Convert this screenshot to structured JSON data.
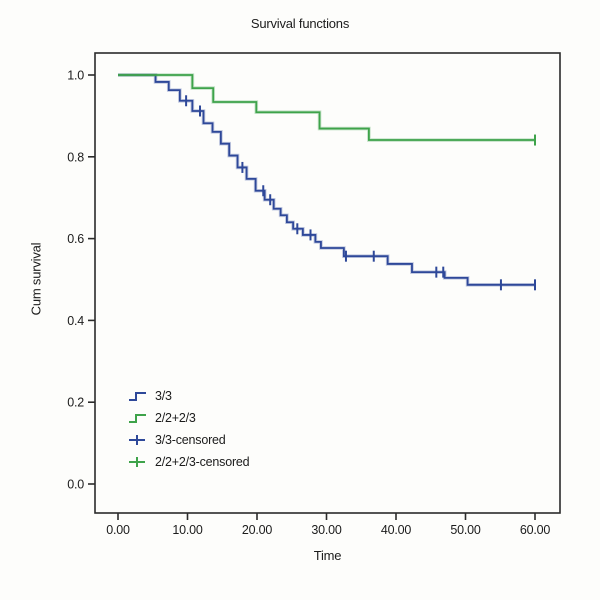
{
  "chart_data": {
    "type": "line",
    "subtype": "kaplan-meier-step-survival",
    "title": "Survival functions",
    "xlabel": "Time",
    "ylabel": "Cum survival",
    "xlim": [
      0,
      60
    ],
    "ylim": [
      0.0,
      1.0
    ],
    "grid": false,
    "legend_position": "lower-left-inside",
    "x_ticks": [
      {
        "value": 0,
        "label": "0.00"
      },
      {
        "value": 10,
        "label": "10.00"
      },
      {
        "value": 20,
        "label": "20.00"
      },
      {
        "value": 30,
        "label": "30.00"
      },
      {
        "value": 40,
        "label": "40.00"
      },
      {
        "value": 50,
        "label": "50.00"
      },
      {
        "value": 60,
        "label": "60.00"
      }
    ],
    "y_ticks": [
      {
        "value": 0.0,
        "label": "0.0"
      },
      {
        "value": 0.2,
        "label": "0.2"
      },
      {
        "value": 0.4,
        "label": "0.4"
      },
      {
        "value": 0.6,
        "label": "0.6"
      },
      {
        "value": 0.8,
        "label": "0.8"
      },
      {
        "value": 1.0,
        "label": "1.0"
      }
    ],
    "series": [
      {
        "name": "3/3",
        "color": "#2E4899",
        "points": [
          [
            0,
            1.0
          ],
          [
            5.4,
            0.983
          ],
          [
            7.3,
            0.963
          ],
          [
            8.9,
            0.937
          ],
          [
            10.7,
            0.912
          ],
          [
            12.3,
            0.882
          ],
          [
            13.6,
            0.861
          ],
          [
            14.8,
            0.832
          ],
          [
            16.0,
            0.803
          ],
          [
            17.2,
            0.774
          ],
          [
            18.5,
            0.746
          ],
          [
            19.8,
            0.717
          ],
          [
            21.1,
            0.695
          ],
          [
            22.4,
            0.673
          ],
          [
            23.4,
            0.657
          ],
          [
            24.3,
            0.64
          ],
          [
            25.2,
            0.624
          ],
          [
            26.6,
            0.609
          ],
          [
            28.4,
            0.592
          ],
          [
            29.2,
            0.577
          ],
          [
            32.5,
            0.557
          ],
          [
            38.8,
            0.538
          ],
          [
            42.3,
            0.518
          ],
          [
            47.0,
            0.504
          ],
          [
            50.3,
            0.487
          ],
          [
            60,
            0.487
          ]
        ],
        "censored_times": [
          9.8,
          11.8,
          17.9,
          20.9,
          21.9,
          25.8,
          27.7,
          32.8,
          36.8,
          45.8,
          46.8,
          55.1,
          60
        ]
      },
      {
        "name": "2/2+2/3",
        "color": "#3EA34A",
        "points": [
          [
            0,
            1.0
          ],
          [
            10.7,
            0.968
          ],
          [
            13.7,
            0.934
          ],
          [
            19.9,
            0.909
          ],
          [
            29.0,
            0.869
          ],
          [
            36.1,
            0.841
          ],
          [
            60,
            0.841
          ]
        ],
        "censored_times": [
          60
        ]
      }
    ],
    "legend": [
      {
        "label": "3/3",
        "color": "#2E4899",
        "marker": "step"
      },
      {
        "label": "2/2+2/3",
        "color": "#3EA34A",
        "marker": "step"
      },
      {
        "label": "3/3-censored",
        "color": "#2E4899",
        "marker": "plus"
      },
      {
        "label": "2/2+2/3-censored",
        "color": "#3EA34A",
        "marker": "plus"
      }
    ]
  }
}
